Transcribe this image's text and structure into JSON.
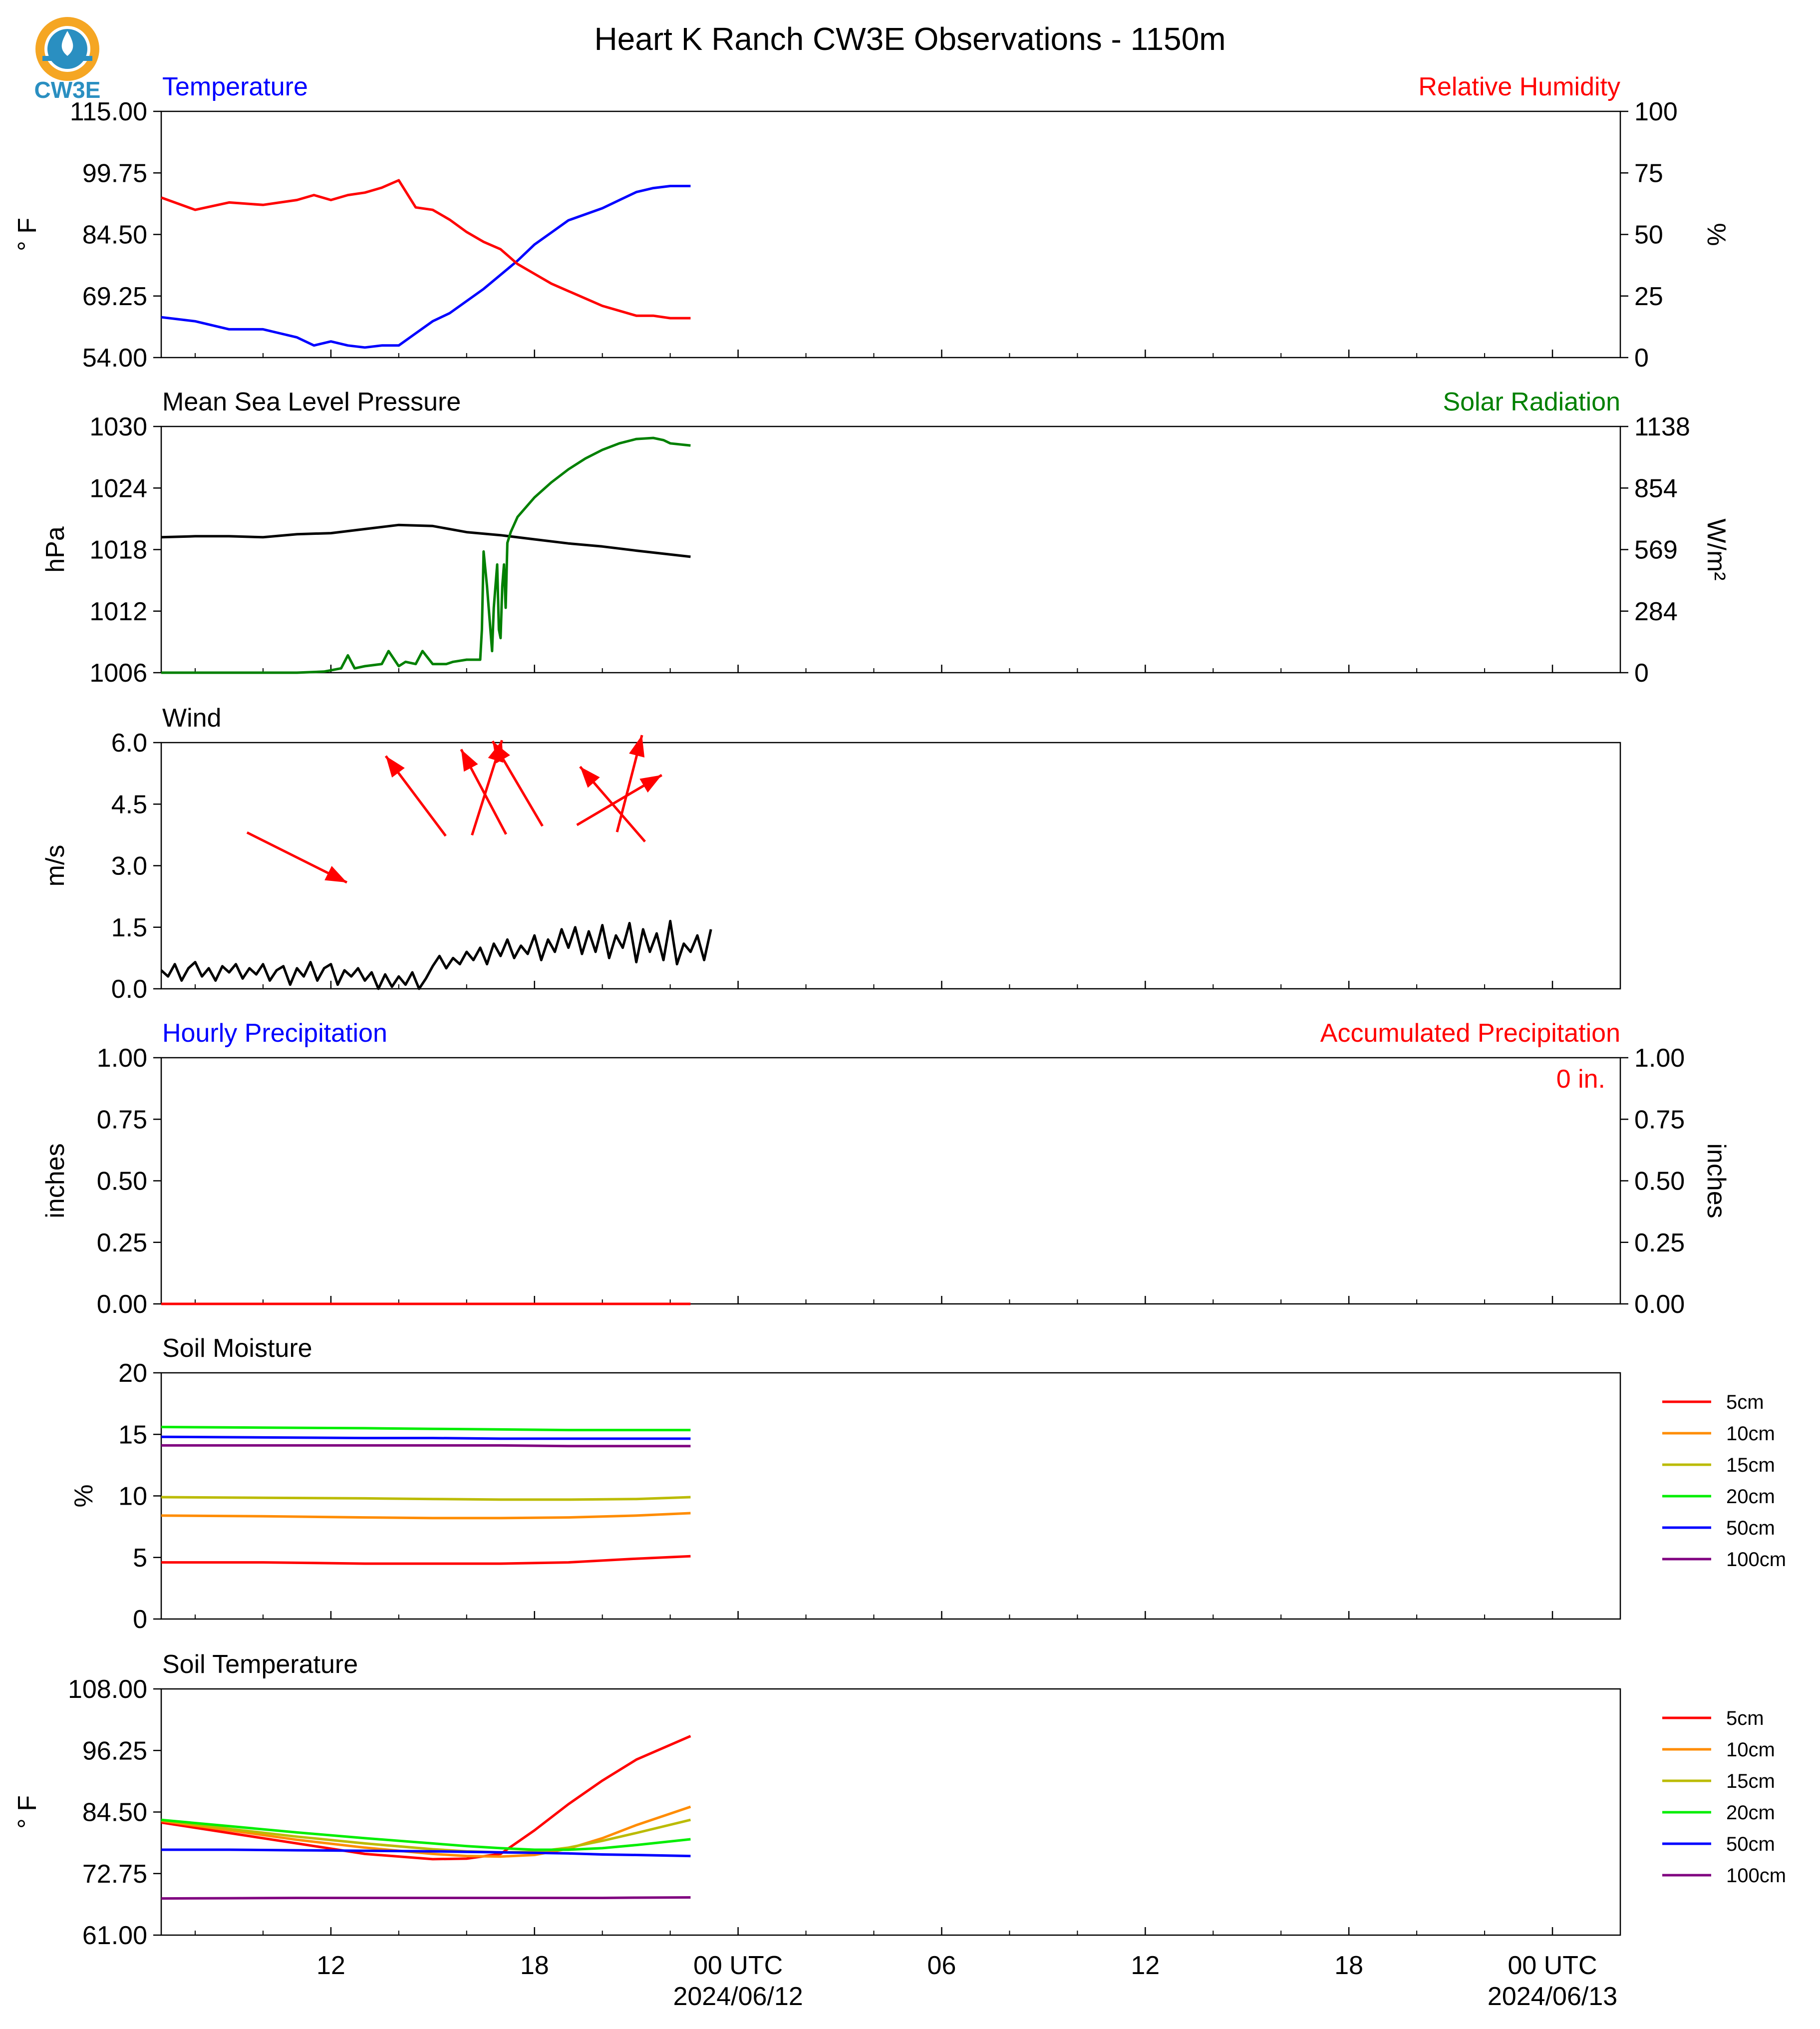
{
  "title": "Heart K Ranch CW3E Observations - 1150m",
  "logo": {
    "text": "CW3E",
    "colors": {
      "ring": "#f5a623",
      "drop": "#2a8fc1",
      "text": "#2a8fc1"
    }
  },
  "x_axis": {
    "tick_labels": [
      "12",
      "18",
      "00 UTC",
      "06",
      "12",
      "18",
      "00 UTC"
    ],
    "date_labels": [
      "2024/06/12",
      "2024/06/13"
    ]
  },
  "colors": {
    "blue": "#0000ff",
    "red": "#ff0000",
    "green": "#008000",
    "black": "#000000"
  },
  "chart_data": [
    {
      "id": "temperature-rh",
      "type": "line",
      "title_left": "Temperature",
      "title_right": "Relative Humidity",
      "ylabel": "° F",
      "ylabel_right": "%",
      "yticks": [
        "115.00",
        "99.75",
        "84.50",
        "69.25",
        "54.00"
      ],
      "yticks_right": [
        "100",
        "75",
        "50",
        "25",
        "0"
      ],
      "ylim": [
        54,
        115
      ],
      "ylim_right": [
        0,
        100
      ],
      "x_hours": [
        7.0,
        8.0,
        9.0,
        10.0,
        10.5,
        11.0,
        11.5,
        12.0,
        12.5,
        13.0,
        13.5,
        14.0,
        14.5,
        15.0,
        15.5,
        16.0,
        16.5,
        17.0,
        17.5,
        18.0,
        18.5,
        19.0,
        19.5,
        20.0,
        20.5,
        21.0,
        21.5,
        22.0,
        22.6
      ],
      "series": [
        {
          "name": "Temperature",
          "axis": "left",
          "color": "#0000ff",
          "values": [
            64,
            63,
            61,
            61,
            60,
            59,
            57,
            58,
            57,
            56.5,
            57,
            57,
            60,
            63,
            65,
            68,
            71,
            74.5,
            78,
            82,
            85,
            88,
            89.5,
            91,
            93,
            95,
            96,
            96.5,
            96.5
          ]
        },
        {
          "name": "Relative Humidity",
          "axis": "right",
          "color": "#ff0000",
          "values": [
            65,
            60,
            63,
            62,
            63,
            64,
            66,
            64,
            66,
            67,
            69,
            72,
            61,
            60,
            56,
            51,
            47,
            44,
            38,
            34,
            30,
            27,
            24,
            21,
            19,
            17,
            17,
            16,
            16
          ]
        }
      ]
    },
    {
      "id": "pressure-solar",
      "type": "line",
      "title_left": "Mean Sea Level Pressure",
      "title_right": "Solar Radiation",
      "ylabel": "hPa",
      "ylabel_right": "W/m²",
      "yticks": [
        "1030",
        "1024",
        "1018",
        "1012",
        "1006"
      ],
      "yticks_right": [
        "1138",
        "854",
        "569",
        "284",
        "0"
      ],
      "ylim": [
        1006,
        1030
      ],
      "ylim_right": [
        0,
        1138
      ],
      "series": [
        {
          "name": "Mean Sea Level Pressure",
          "axis": "left",
          "color": "#000000",
          "x_hours": [
            7.0,
            8.0,
            9.0,
            10.0,
            11.0,
            12.0,
            13.0,
            14.0,
            15.0,
            16.0,
            17.0,
            18.0,
            19.0,
            20.0,
            21.0,
            22.6
          ],
          "values": [
            1019.2,
            1019.3,
            1019.3,
            1019.2,
            1019.5,
            1019.6,
            1020.0,
            1020.4,
            1020.3,
            1019.7,
            1019.4,
            1019.0,
            1018.6,
            1018.3,
            1017.9,
            1017.3
          ]
        },
        {
          "name": "Solar Radiation",
          "axis": "right",
          "color": "#008000",
          "x_hours": [
            7.0,
            9.0,
            10.0,
            11.0,
            11.8,
            12.3,
            12.5,
            12.7,
            13.0,
            13.5,
            13.7,
            14.0,
            14.2,
            14.5,
            14.7,
            15.0,
            15.4,
            15.6,
            16.0,
            16.4,
            16.45,
            16.5,
            16.6,
            16.7,
            16.75,
            16.8,
            16.9,
            16.95,
            17.0,
            17.05,
            17.1,
            17.15,
            17.2,
            17.3,
            17.5,
            18.0,
            18.5,
            19.0,
            19.5,
            20.0,
            20.5,
            21.0,
            21.5,
            21.8,
            22.0,
            22.6
          ],
          "values": [
            0,
            0,
            0,
            0,
            5,
            20,
            80,
            20,
            30,
            40,
            100,
            30,
            50,
            40,
            100,
            40,
            40,
            50,
            60,
            60,
            200,
            560,
            400,
            200,
            100,
            300,
            500,
            200,
            160,
            400,
            500,
            300,
            600,
            650,
            720,
            810,
            880,
            940,
            990,
            1030,
            1060,
            1080,
            1085,
            1075,
            1060,
            1050
          ]
        }
      ]
    },
    {
      "id": "wind",
      "type": "line",
      "title_left": "Wind",
      "ylabel": "m/s",
      "yticks": [
        "6.0",
        "4.5",
        "3.0",
        "1.5",
        "0.0"
      ],
      "ylim": [
        0,
        6
      ],
      "arrow_color": "#ff0000",
      "line_color": "#000000",
      "series": [
        {
          "name": "Wind Speed",
          "x_hours": [
            7.0,
            7.2,
            7.4,
            7.6,
            7.8,
            8.0,
            8.2,
            8.4,
            8.6,
            8.8,
            9.0,
            9.2,
            9.4,
            9.6,
            9.8,
            10.0,
            10.2,
            10.4,
            10.6,
            10.8,
            11.0,
            11.2,
            11.4,
            11.6,
            11.8,
            12.0,
            12.2,
            12.4,
            12.6,
            12.8,
            13.0,
            13.2,
            13.4,
            13.6,
            13.8,
            14.0,
            14.2,
            14.4,
            14.6,
            14.8,
            15.0,
            15.2,
            15.4,
            15.6,
            15.8,
            16.0,
            16.2,
            16.4,
            16.6,
            16.8,
            17.0,
            17.2,
            17.4,
            17.6,
            17.8,
            18.0,
            18.2,
            18.4,
            18.6,
            18.8,
            19.0,
            19.2,
            19.4,
            19.6,
            19.8,
            20.0,
            20.2,
            20.4,
            20.6,
            20.8,
            21.0,
            21.2,
            21.4,
            21.6,
            21.8,
            22.0,
            22.2,
            22.4,
            22.6,
            22.8,
            23.0,
            23.2
          ],
          "values": [
            0.45,
            0.3,
            0.6,
            0.2,
            0.5,
            0.65,
            0.3,
            0.5,
            0.2,
            0.55,
            0.4,
            0.6,
            0.25,
            0.5,
            0.35,
            0.6,
            0.2,
            0.45,
            0.55,
            0.1,
            0.5,
            0.3,
            0.65,
            0.2,
            0.5,
            0.6,
            0.1,
            0.45,
            0.3,
            0.5,
            0.2,
            0.4,
            0.0,
            0.35,
            0.05,
            0.3,
            0.1,
            0.4,
            0.0,
            0.25,
            0.55,
            0.8,
            0.5,
            0.75,
            0.6,
            0.9,
            0.7,
            1.0,
            0.6,
            1.1,
            0.8,
            1.2,
            0.75,
            1.05,
            0.85,
            1.3,
            0.7,
            1.2,
            0.9,
            1.45,
            1.0,
            1.5,
            0.85,
            1.4,
            0.9,
            1.55,
            0.75,
            1.3,
            1.0,
            1.6,
            0.65,
            1.45,
            0.9,
            1.35,
            0.7,
            1.65,
            0.6,
            1.1,
            0.9,
            1.3,
            0.7,
            1.45
          ]
        }
      ],
      "arrows": [
        {
          "x_hour": 11.0,
          "speed": 3.2,
          "u": 1.0,
          "v": -0.5
        },
        {
          "x_hour": 14.5,
          "speed": 4.7,
          "u": -0.6,
          "v": 0.8
        },
        {
          "x_hour": 16.5,
          "speed": 4.8,
          "u": -0.45,
          "v": 0.85
        },
        {
          "x_hour": 16.6,
          "speed": 4.9,
          "u": 0.3,
          "v": 0.95
        },
        {
          "x_hour": 17.5,
          "speed": 5.0,
          "u": -0.5,
          "v": 0.85
        },
        {
          "x_hour": 20.3,
          "speed": 4.5,
          "u": -0.65,
          "v": 0.75
        },
        {
          "x_hour": 20.5,
          "speed": 4.6,
          "u": 0.85,
          "v": 0.5
        },
        {
          "x_hour": 20.8,
          "speed": 5.0,
          "u": 0.25,
          "v": 0.97
        }
      ]
    },
    {
      "id": "precipitation",
      "type": "line",
      "title_left": "Hourly Precipitation",
      "title_right": "Accumulated Precipitation",
      "ylabel": "inches",
      "ylabel_right": "inches",
      "yticks": [
        "1.00",
        "0.75",
        "0.50",
        "0.25",
        "0.00"
      ],
      "yticks_right": [
        "1.00",
        "0.75",
        "0.50",
        "0.25",
        "0.00"
      ],
      "ylim": [
        0,
        1
      ],
      "annotation": "0 in.",
      "series": [
        {
          "name": "Hourly Precipitation",
          "color": "#0000ff",
          "x_hours": [
            7.0,
            22.6
          ],
          "values": [
            0,
            0
          ]
        },
        {
          "name": "Accumulated Precipitation",
          "color": "#ff0000",
          "x_hours": [
            7.0,
            22.6
          ],
          "values": [
            0,
            0
          ]
        }
      ]
    },
    {
      "id": "soil-moisture",
      "type": "line",
      "title_left": "Soil Moisture",
      "ylabel": "%",
      "yticks": [
        "20",
        "15",
        "10",
        "5",
        "0"
      ],
      "ylim": [
        0,
        20
      ],
      "legend": [
        "5cm",
        "10cm",
        "15cm",
        "20cm",
        "50cm",
        "100cm"
      ],
      "x_hours": [
        7.0,
        10.0,
        13.0,
        15.0,
        17.0,
        19.0,
        21.0,
        22.6
      ],
      "series": [
        {
          "name": "5cm",
          "color": "#ff0000",
          "values": [
            4.6,
            4.6,
            4.5,
            4.5,
            4.5,
            4.6,
            4.9,
            5.1
          ]
        },
        {
          "name": "10cm",
          "color": "#ff8c00",
          "values": [
            8.4,
            8.35,
            8.25,
            8.2,
            8.2,
            8.25,
            8.4,
            8.6
          ]
        },
        {
          "name": "15cm",
          "color": "#bbbb00",
          "values": [
            9.9,
            9.85,
            9.8,
            9.75,
            9.7,
            9.7,
            9.75,
            9.9
          ]
        },
        {
          "name": "20cm",
          "color": "#00ee00",
          "values": [
            15.6,
            15.55,
            15.5,
            15.45,
            15.4,
            15.35,
            15.35,
            15.35
          ]
        },
        {
          "name": "50cm",
          "color": "#0000ff",
          "values": [
            14.8,
            14.75,
            14.7,
            14.7,
            14.65,
            14.65,
            14.65,
            14.65
          ]
        },
        {
          "name": "100cm",
          "color": "#800080",
          "values": [
            14.1,
            14.1,
            14.1,
            14.1,
            14.1,
            14.05,
            14.05,
            14.05
          ]
        }
      ]
    },
    {
      "id": "soil-temperature",
      "type": "line",
      "title_left": "Soil Temperature",
      "ylabel": "° F",
      "yticks": [
        "108.00",
        "96.25",
        "84.50",
        "72.75",
        "61.00"
      ],
      "ylim": [
        61,
        108
      ],
      "legend": [
        "5cm",
        "10cm",
        "15cm",
        "20cm",
        "50cm",
        "100cm"
      ],
      "x_hours": [
        7.0,
        9.0,
        11.0,
        13.0,
        15.0,
        16.0,
        17.0,
        18.0,
        19.0,
        20.0,
        21.0,
        22.6
      ],
      "series": [
        {
          "name": "5cm",
          "color": "#ff0000",
          "values": [
            82.5,
            80.5,
            78.5,
            76.5,
            75.5,
            75.6,
            76.5,
            81,
            86,
            90.5,
            94.5,
            99
          ]
        },
        {
          "name": "10cm",
          "color": "#ff8c00",
          "values": [
            82.8,
            81,
            79.2,
            77.7,
            76.5,
            76.1,
            76.0,
            76.3,
            77.5,
            79.5,
            82,
            85.5
          ]
        },
        {
          "name": "15cm",
          "color": "#bbbb00",
          "values": [
            83.0,
            81.3,
            79.8,
            78.5,
            77.4,
            77.0,
            76.8,
            76.9,
            77.7,
            79.0,
            80.5,
            83
          ]
        },
        {
          "name": "20cm",
          "color": "#00ee00",
          "values": [
            83.0,
            81.8,
            80.6,
            79.5,
            78.5,
            78.0,
            77.6,
            77.3,
            77.3,
            77.6,
            78.2,
            79.3
          ]
        },
        {
          "name": "50cm",
          "color": "#0000ff",
          "values": [
            77.3,
            77.3,
            77.2,
            77.1,
            77.0,
            76.9,
            76.8,
            76.7,
            76.6,
            76.4,
            76.3,
            76.1
          ]
        },
        {
          "name": "100cm",
          "color": "#800080",
          "values": [
            68.0,
            68.05,
            68.1,
            68.1,
            68.1,
            68.1,
            68.1,
            68.1,
            68.1,
            68.1,
            68.15,
            68.2
          ]
        }
      ]
    }
  ]
}
